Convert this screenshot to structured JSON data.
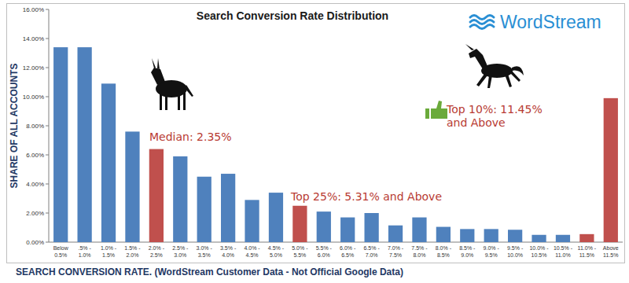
{
  "chart_data": {
    "type": "bar",
    "title": "Search Conversion Rate Distribution",
    "brand": "WordStream",
    "y_label": "SHARE OF ALL ACCOUNTS",
    "x_label": "SEARCH CONVERSION RATE.  (WordStream Customer Data - Not Official Google Data)",
    "annotations": [
      "Median: 2.35%",
      "Top 25%: 5.31% and Above",
      "Top 10%: 11.45% and Above"
    ],
    "categories": [
      "Below 0.5%",
      ".5% - 1.0%",
      "1.0% - 1.5%",
      "1.5% - 2.0%",
      "2.0% - 2.5%",
      "2.5% - 3.0%",
      "3.0% - 3.5%",
      "3.5% - 4.0%",
      "4.0% - 4.5%",
      "4.5% - 5.0%",
      "5.0% - 5.5%",
      "5.5% - 6.0%",
      "6.0% - 6.5%",
      "6.5% - 7.0%",
      "7.0% - 7.5%",
      "7.5% - 8.0%",
      "8.0% - 8.5%",
      "8.5% - 9.0%",
      "9.0% - 9.5%",
      "9.5% - 10.0%",
      "10.0% - 10.5%",
      "10.5% - 11.0%",
      "11.0% - 11.5%",
      "Above 11.5%"
    ],
    "values": [
      13.4,
      13.4,
      10.9,
      7.6,
      6.4,
      5.9,
      4.5,
      4.7,
      2.9,
      3.4,
      2.5,
      2.1,
      1.7,
      2.0,
      1.15,
      1.7,
      1.05,
      0.9,
      0.9,
      0.85,
      0.5,
      0.5,
      0.55,
      9.9
    ],
    "colors": [
      "#4f81bd",
      "#4f81bd",
      "#4f81bd",
      "#4f81bd",
      "#c0504d",
      "#4f81bd",
      "#4f81bd",
      "#4f81bd",
      "#4f81bd",
      "#4f81bd",
      "#c0504d",
      "#4f81bd",
      "#4f81bd",
      "#4f81bd",
      "#4f81bd",
      "#4f81bd",
      "#4f81bd",
      "#4f81bd",
      "#4f81bd",
      "#4f81bd",
      "#4f81bd",
      "#4f81bd",
      "#c0504d",
      "#c0504d"
    ],
    "ylim": [
      0,
      16
    ],
    "yticks": [
      {
        "value": 0,
        "label": "0.00%"
      },
      {
        "value": 2,
        "label": "2.00%"
      },
      {
        "value": 4,
        "label": "4.00%"
      },
      {
        "value": 6,
        "label": "6.00%"
      },
      {
        "value": 8,
        "label": "8.00%"
      },
      {
        "value": 10,
        "label": "10.00%"
      },
      {
        "value": 12,
        "label": "12.00%"
      },
      {
        "value": 14,
        "label": "14.00%"
      },
      {
        "value": 16,
        "label": "16.00%"
      }
    ],
    "grid": false
  }
}
